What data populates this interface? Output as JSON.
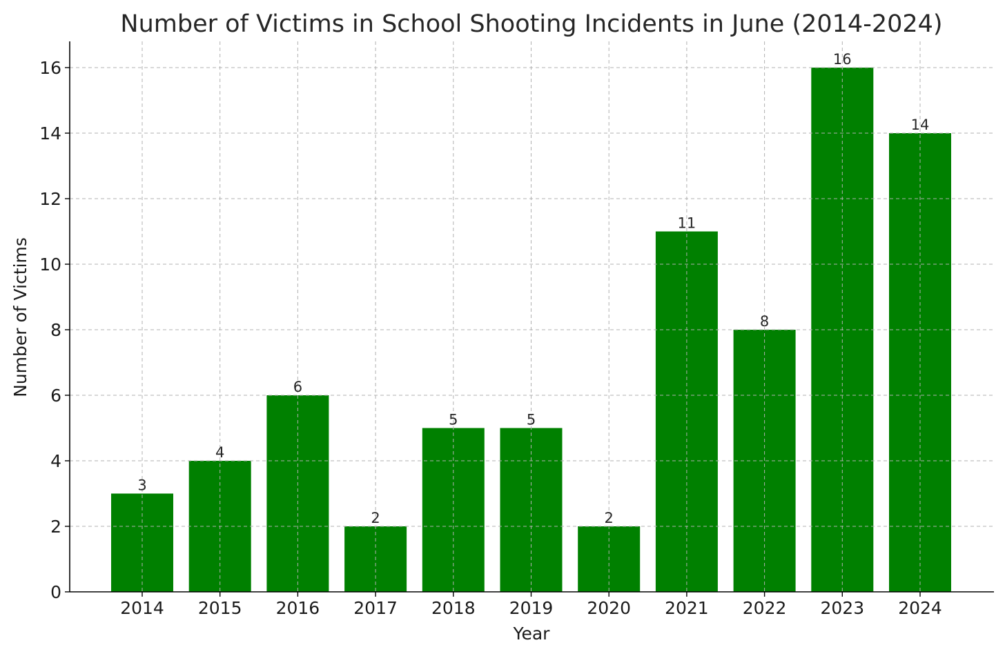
{
  "chart_data": {
    "type": "bar",
    "title": "Number of Victims in School Shooting Incidents in June (2014-2024)",
    "xlabel": "Year",
    "ylabel": "Number of Victims",
    "categories": [
      "2014",
      "2015",
      "2016",
      "2017",
      "2018",
      "2019",
      "2020",
      "2021",
      "2022",
      "2023",
      "2024"
    ],
    "values": [
      3,
      4,
      6,
      2,
      5,
      5,
      2,
      11,
      8,
      16,
      14
    ],
    "ylim": [
      0,
      16.8
    ],
    "yticks": [
      0,
      2,
      4,
      6,
      8,
      10,
      12,
      14,
      16
    ],
    "grid": true,
    "bar_color": "#008000",
    "data_labels": true
  }
}
